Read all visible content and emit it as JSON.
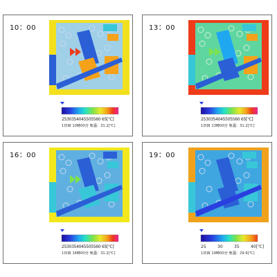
{
  "panels": [
    {
      "time": "10：00",
      "ground": "#f2e01e",
      "ticks": "25303540455055606 5[℃]",
      "ticks_compact": "2530354045505560 65[℃]",
      "caption": "1日目 10時00分 気温：31.2[℃]",
      "spaced": false
    },
    {
      "time": "13：00",
      "ground": "#ee3b1a",
      "ticks_compact": "2530354045505560 65[℃]",
      "caption": "1日目 13時00分 気温：31.2[℃]",
      "spaced": false
    },
    {
      "time": "16：00",
      "ground": "#f2e81c",
      "ticks_compact": "2530354045505560 65[℃]",
      "caption": "1日目 16時00分 気温：31.2[℃]",
      "spaced": false
    },
    {
      "time": "19：00",
      "ground": "#f0a21c",
      "ticks_spaced": [
        "25",
        "30",
        "35",
        "40[℃]"
      ],
      "caption": "1日目 19時00分 気温：29.6[℃]",
      "spaced": true
    }
  ],
  "colors": {
    "scale": [
      "#1b0fa0",
      "#2a3fe0",
      "#1fa8f0",
      "#27e3c2",
      "#7ee34a",
      "#e8e82a",
      "#f5a21a",
      "#ee3b1a",
      "#f01d9a"
    ],
    "building_blue": "#2b5fd6",
    "building_cyan": "#38c7d8",
    "tree_ring": "#c9d9ef"
  }
}
